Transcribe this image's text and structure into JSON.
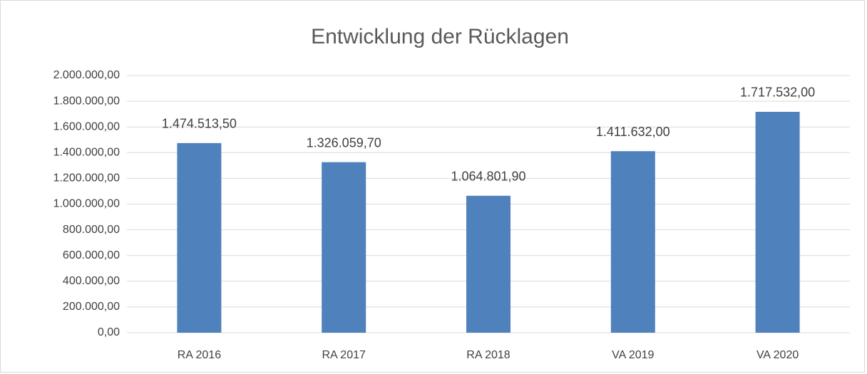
{
  "chart_data": {
    "type": "bar",
    "title": "Entwicklung der Rücklagen",
    "categories": [
      "RA 2016",
      "RA 2017",
      "RA 2018",
      "VA 2019",
      "VA 2020"
    ],
    "values": [
      1474513.5,
      1326059.7,
      1064801.9,
      1411632,
      1717532
    ],
    "value_labels": [
      "1.474.513,50",
      "1.326.059,70",
      "1.064.801,90",
      "1.411.632,00",
      "1.717.532,00"
    ],
    "color": "#4f81bd",
    "ylim": [
      0,
      2000000
    ],
    "yticks": [
      {
        "value": 0,
        "label": "0,00"
      },
      {
        "value": 200000,
        "label": "200.000,00"
      },
      {
        "value": 400000,
        "label": "400.000,00"
      },
      {
        "value": 600000,
        "label": "600.000,00"
      },
      {
        "value": 800000,
        "label": "800.000,00"
      },
      {
        "value": 1000000,
        "label": "1.000.000,00"
      },
      {
        "value": 1200000,
        "label": "1.200.000,00"
      },
      {
        "value": 1400000,
        "label": "1.400.000,00"
      },
      {
        "value": 1600000,
        "label": "1.600.000,00"
      },
      {
        "value": 1800000,
        "label": "1.800.000,00"
      },
      {
        "value": 2000000,
        "label": "2.000.000,00"
      }
    ],
    "grid": true
  }
}
